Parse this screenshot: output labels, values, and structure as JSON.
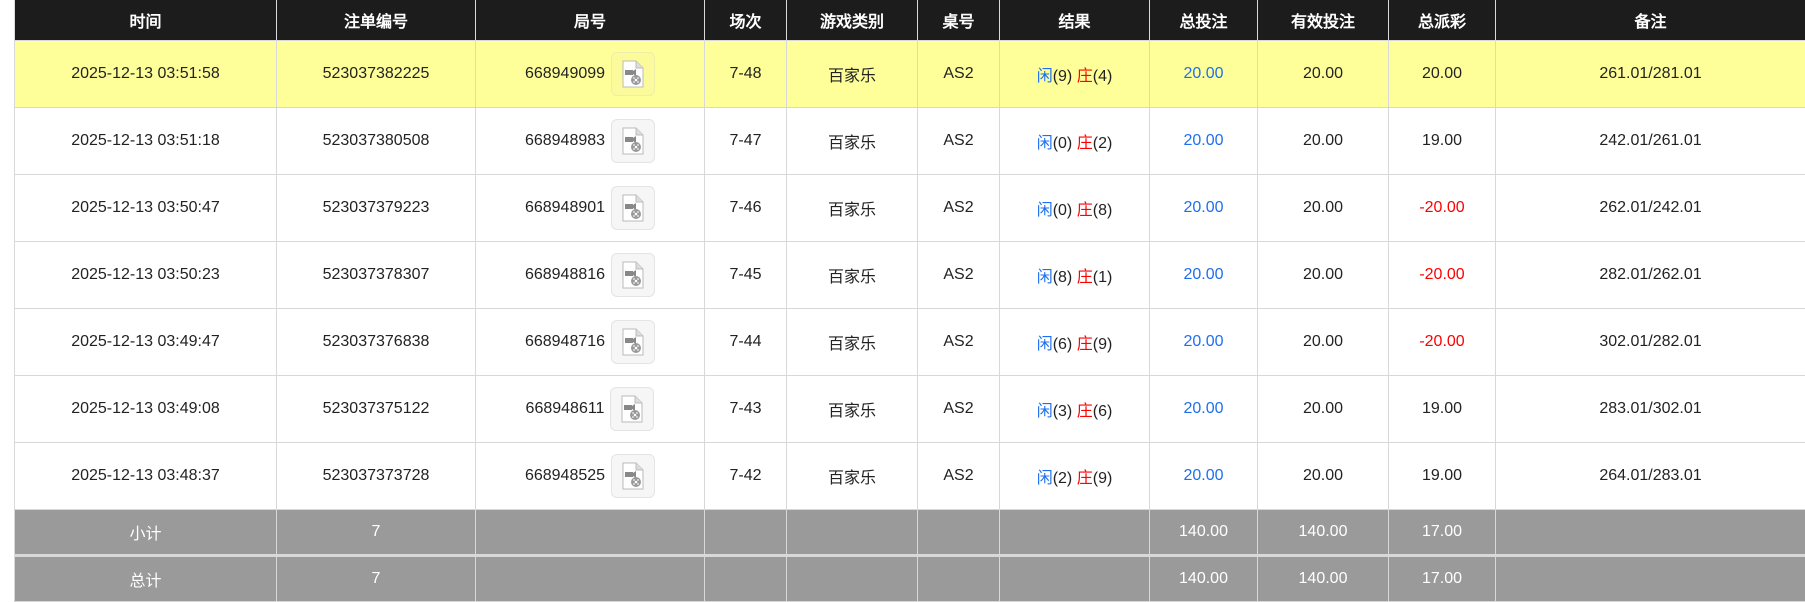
{
  "headers": [
    "时间",
    "注单编号",
    "局号",
    "场次",
    "游戏类别",
    "桌号",
    "结果",
    "总投注",
    "有效投注",
    "总派彩",
    "备注"
  ],
  "colors": {
    "header_bg": "#1c1c1c",
    "highlight": "#ffff99",
    "player": "#1e6ff0",
    "banker": "#ff0000",
    "negative": "#ff0000",
    "footer_bg": "#9a9a9a"
  },
  "rows": [
    {
      "time": "2025-12-13 03:51:58",
      "bet_id": "523037382225",
      "round": "668949099",
      "shoe": "7-48",
      "game": "百家乐",
      "table": "AS2",
      "player_label": "闲",
      "player_score": "(9)",
      "banker_label": "庄",
      "banker_score": "(4)",
      "total_bet": "20.00",
      "valid_bet": "20.00",
      "payout": "20.00",
      "payout_negative": false,
      "note": "261.01/281.01",
      "highlighted": true
    },
    {
      "time": "2025-12-13 03:51:18",
      "bet_id": "523037380508",
      "round": "668948983",
      "shoe": "7-47",
      "game": "百家乐",
      "table": "AS2",
      "player_label": "闲",
      "player_score": "(0)",
      "banker_label": "庄",
      "banker_score": "(2)",
      "total_bet": "20.00",
      "valid_bet": "20.00",
      "payout": "19.00",
      "payout_negative": false,
      "note": "242.01/261.01"
    },
    {
      "time": "2025-12-13 03:50:47",
      "bet_id": "523037379223",
      "round": "668948901",
      "shoe": "7-46",
      "game": "百家乐",
      "table": "AS2",
      "player_label": "闲",
      "player_score": "(0)",
      "banker_label": "庄",
      "banker_score": "(8)",
      "total_bet": "20.00",
      "valid_bet": "20.00",
      "payout": "-20.00",
      "payout_negative": true,
      "note": "262.01/242.01"
    },
    {
      "time": "2025-12-13 03:50:23",
      "bet_id": "523037378307",
      "round": "668948816",
      "shoe": "7-45",
      "game": "百家乐",
      "table": "AS2",
      "player_label": "闲",
      "player_score": "(8)",
      "banker_label": "庄",
      "banker_score": "(1)",
      "total_bet": "20.00",
      "valid_bet": "20.00",
      "payout": "-20.00",
      "payout_negative": true,
      "note": "282.01/262.01"
    },
    {
      "time": "2025-12-13 03:49:47",
      "bet_id": "523037376838",
      "round": "668948716",
      "shoe": "7-44",
      "game": "百家乐",
      "table": "AS2",
      "player_label": "闲",
      "player_score": "(6)",
      "banker_label": "庄",
      "banker_score": "(9)",
      "total_bet": "20.00",
      "valid_bet": "20.00",
      "payout": "-20.00",
      "payout_negative": true,
      "note": "302.01/282.01"
    },
    {
      "time": "2025-12-13 03:49:08",
      "bet_id": "523037375122",
      "round": "668948611",
      "shoe": "7-43",
      "game": "百家乐",
      "table": "AS2",
      "player_label": "闲",
      "player_score": "(3)",
      "banker_label": "庄",
      "banker_score": "(6)",
      "total_bet": "20.00",
      "valid_bet": "20.00",
      "payout": "19.00",
      "payout_negative": false,
      "note": "283.01/302.01"
    },
    {
      "time": "2025-12-13 03:48:37",
      "bet_id": "523037373728",
      "round": "668948525",
      "shoe": "7-42",
      "game": "百家乐",
      "table": "AS2",
      "player_label": "闲",
      "player_score": "(2)",
      "banker_label": "庄",
      "banker_score": "(9)",
      "total_bet": "20.00",
      "valid_bet": "20.00",
      "payout": "19.00",
      "payout_negative": false,
      "note": "264.01/283.01"
    }
  ],
  "subtotal": {
    "label": "小计",
    "count": "7",
    "total_bet": "140.00",
    "valid_bet": "140.00",
    "payout": "17.00"
  },
  "grand_total": {
    "label": "总计",
    "count": "7",
    "total_bet": "140.00",
    "valid_bet": "140.00",
    "payout": "17.00"
  },
  "row_icon": "video-replay-icon"
}
